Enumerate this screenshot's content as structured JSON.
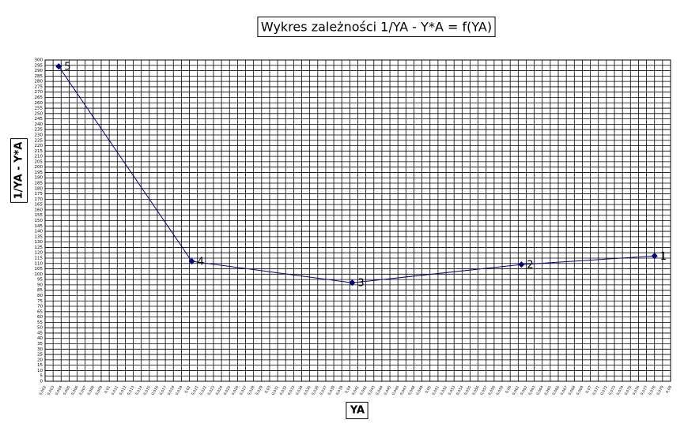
{
  "chart_data": {
    "type": "line",
    "title": "Wykres zależności 1/YA - Y*A = f(YA)",
    "xlabel": "YA",
    "ylabel": "1/YA - Y*A",
    "x": [
      0.0037,
      0.0203,
      0.0403,
      0.0614,
      0.078
    ],
    "series": [
      {
        "color": "#000080",
        "values": [
          294,
          112,
          92,
          109,
          117
        ],
        "point_labels": [
          "5",
          "4",
          "3",
          "2",
          "1"
        ]
      }
    ],
    "xlim": [
      0.002,
      0.08
    ],
    "ylim": [
      0,
      300
    ],
    "grid": true,
    "yticks": [
      0,
      5,
      10,
      15,
      20,
      25,
      30,
      35,
      40,
      45,
      50,
      55,
      60,
      65,
      70,
      75,
      80,
      85,
      90,
      95,
      100,
      105,
      110,
      115,
      120,
      125,
      130,
      135,
      140,
      145,
      150,
      155,
      160,
      165,
      170,
      175,
      180,
      185,
      190,
      195,
      200,
      205,
      210,
      215,
      220,
      225,
      230,
      235,
      240,
      245,
      250,
      255,
      260,
      265,
      270,
      275,
      280,
      285,
      290,
      295,
      300
    ],
    "xticks": [
      {
        "value": 0.002,
        "label": "0,002"
      },
      {
        "value": 0.003,
        "label": "0,003"
      },
      {
        "value": 0.004,
        "label": "0,004"
      },
      {
        "value": 0.005,
        "label": "0,005"
      },
      {
        "value": 0.006,
        "label": "0,006"
      },
      {
        "value": 0.007,
        "label": "0,007"
      },
      {
        "value": 0.008,
        "label": "0,008"
      },
      {
        "value": 0.009,
        "label": "0,009"
      },
      {
        "value": 0.01,
        "label": "0,01"
      },
      {
        "value": 0.011,
        "label": "0,011"
      },
      {
        "value": 0.012,
        "label": "0,012"
      },
      {
        "value": 0.013,
        "label": "0,013"
      },
      {
        "value": 0.014,
        "label": "0,014"
      },
      {
        "value": 0.015,
        "label": "0,015"
      },
      {
        "value": 0.016,
        "label": "0,016"
      },
      {
        "value": 0.017,
        "label": "0,017"
      },
      {
        "value": 0.018,
        "label": "0,018"
      },
      {
        "value": 0.019,
        "label": "0,019"
      },
      {
        "value": 0.02,
        "label": "0,02"
      },
      {
        "value": 0.021,
        "label": "0,021"
      },
      {
        "value": 0.022,
        "label": "0,022"
      },
      {
        "value": 0.023,
        "label": "0,023"
      },
      {
        "value": 0.024,
        "label": "0,024"
      },
      {
        "value": 0.025,
        "label": "0,025"
      },
      {
        "value": 0.026,
        "label": "0,026"
      },
      {
        "value": 0.027,
        "label": "0,027"
      },
      {
        "value": 0.028,
        "label": "0,028"
      },
      {
        "value": 0.029,
        "label": "0,029"
      },
      {
        "value": 0.03,
        "label": "0,03"
      },
      {
        "value": 0.031,
        "label": "0,031"
      },
      {
        "value": 0.032,
        "label": "0,032"
      },
      {
        "value": 0.033,
        "label": "0,033"
      },
      {
        "value": 0.034,
        "label": "0,034"
      },
      {
        "value": 0.035,
        "label": "0,035"
      },
      {
        "value": 0.036,
        "label": "0,036"
      },
      {
        "value": 0.037,
        "label": "0,037"
      },
      {
        "value": 0.038,
        "label": "0,038"
      },
      {
        "value": 0.039,
        "label": "0,039"
      },
      {
        "value": 0.04,
        "label": "0,04"
      },
      {
        "value": 0.041,
        "label": "0,041"
      },
      {
        "value": 0.042,
        "label": "0,042"
      },
      {
        "value": 0.043,
        "label": "0,043"
      },
      {
        "value": 0.044,
        "label": "0,044"
      },
      {
        "value": 0.045,
        "label": "0,045"
      },
      {
        "value": 0.046,
        "label": "0,046"
      },
      {
        "value": 0.047,
        "label": "0,047"
      },
      {
        "value": 0.048,
        "label": "0,048"
      },
      {
        "value": 0.049,
        "label": "0,049"
      },
      {
        "value": 0.05,
        "label": "0,05"
      },
      {
        "value": 0.051,
        "label": "0,051"
      },
      {
        "value": 0.052,
        "label": "0,052"
      },
      {
        "value": 0.053,
        "label": "0,053"
      },
      {
        "value": 0.054,
        "label": "0,054"
      },
      {
        "value": 0.055,
        "label": "0,055"
      },
      {
        "value": 0.056,
        "label": "0,056"
      },
      {
        "value": 0.057,
        "label": "0,057"
      },
      {
        "value": 0.058,
        "label": "0,058"
      },
      {
        "value": 0.059,
        "label": "0,059"
      },
      {
        "value": 0.06,
        "label": "0,06"
      },
      {
        "value": 0.061,
        "label": "0,061"
      },
      {
        "value": 0.062,
        "label": "0,062"
      },
      {
        "value": 0.063,
        "label": "0,063"
      },
      {
        "value": 0.064,
        "label": "0,064"
      },
      {
        "value": 0.065,
        "label": "0,065"
      },
      {
        "value": 0.066,
        "label": "0,066"
      },
      {
        "value": 0.067,
        "label": "0,067"
      },
      {
        "value": 0.068,
        "label": "0,068"
      },
      {
        "value": 0.069,
        "label": "0,069"
      },
      {
        "value": 0.07,
        "label": "0,07"
      },
      {
        "value": 0.071,
        "label": "0,071"
      },
      {
        "value": 0.072,
        "label": "0,072"
      },
      {
        "value": 0.073,
        "label": "0,073"
      },
      {
        "value": 0.074,
        "label": "0,074"
      },
      {
        "value": 0.075,
        "label": "0,075"
      },
      {
        "value": 0.076,
        "label": "0,076"
      },
      {
        "value": 0.077,
        "label": "0,077"
      },
      {
        "value": 0.078,
        "label": "0,078"
      },
      {
        "value": 0.079,
        "label": "0,079"
      },
      {
        "value": 0.08,
        "label": "0,08"
      }
    ]
  }
}
